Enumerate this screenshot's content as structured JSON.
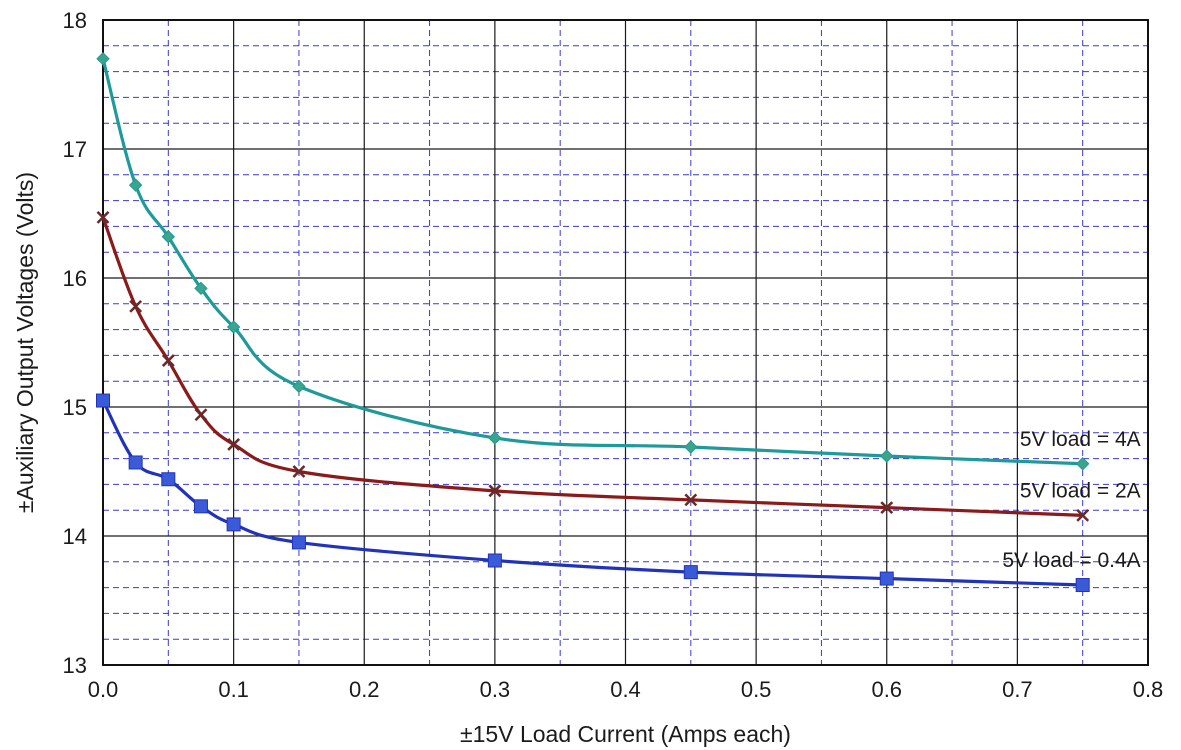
{
  "chart_data": {
    "type": "line",
    "title": "",
    "xlabel": "±15V Load Current (Amps  each)",
    "ylabel": "±Auxiliary Output Voltages (Volts)",
    "xlim": [
      0.0,
      0.8
    ],
    "ylim": [
      13,
      18
    ],
    "x_ticks": [
      "0.0",
      "0.1",
      "0.2",
      "0.3",
      "0.4",
      "0.5",
      "0.6",
      "0.7",
      "0.8"
    ],
    "y_ticks": [
      "13",
      "14",
      "15",
      "16",
      "17",
      "18"
    ],
    "grid": {
      "major": true,
      "minor": true,
      "major_color": "#1a1a1a",
      "minor_color": "#3a3ad0",
      "minor_style": "dashed"
    },
    "legend": "inline labels at right end of each curve",
    "series": [
      {
        "name": "5V load = 4A",
        "color": "#1f9a9a",
        "marker": "diamond",
        "marker_color": "#3aa58a",
        "x": [
          0.0,
          0.025,
          0.05,
          0.075,
          0.1,
          0.15,
          0.3,
          0.45,
          0.6,
          0.75
        ],
        "y": [
          17.7,
          16.72,
          16.32,
          15.92,
          15.62,
          15.16,
          14.76,
          14.69,
          14.62,
          14.56
        ]
      },
      {
        "name": "5V load = 2A",
        "color": "#8b1a1a",
        "marker": "x",
        "marker_color": "#6b2a2a",
        "x": [
          0.0,
          0.025,
          0.05,
          0.075,
          0.1,
          0.15,
          0.3,
          0.45,
          0.6,
          0.75
        ],
        "y": [
          16.47,
          15.78,
          15.36,
          14.94,
          14.71,
          14.5,
          14.35,
          14.28,
          14.22,
          14.16
        ]
      },
      {
        "name": "5V load = 0.4A",
        "color": "#2233bb",
        "marker": "square",
        "marker_color": "#3a5ad8",
        "x": [
          0.0,
          0.025,
          0.05,
          0.075,
          0.1,
          0.15,
          0.3,
          0.45,
          0.6,
          0.75
        ],
        "y": [
          15.05,
          14.57,
          14.44,
          14.23,
          14.09,
          13.95,
          13.81,
          13.72,
          13.67,
          13.62
        ]
      }
    ]
  }
}
